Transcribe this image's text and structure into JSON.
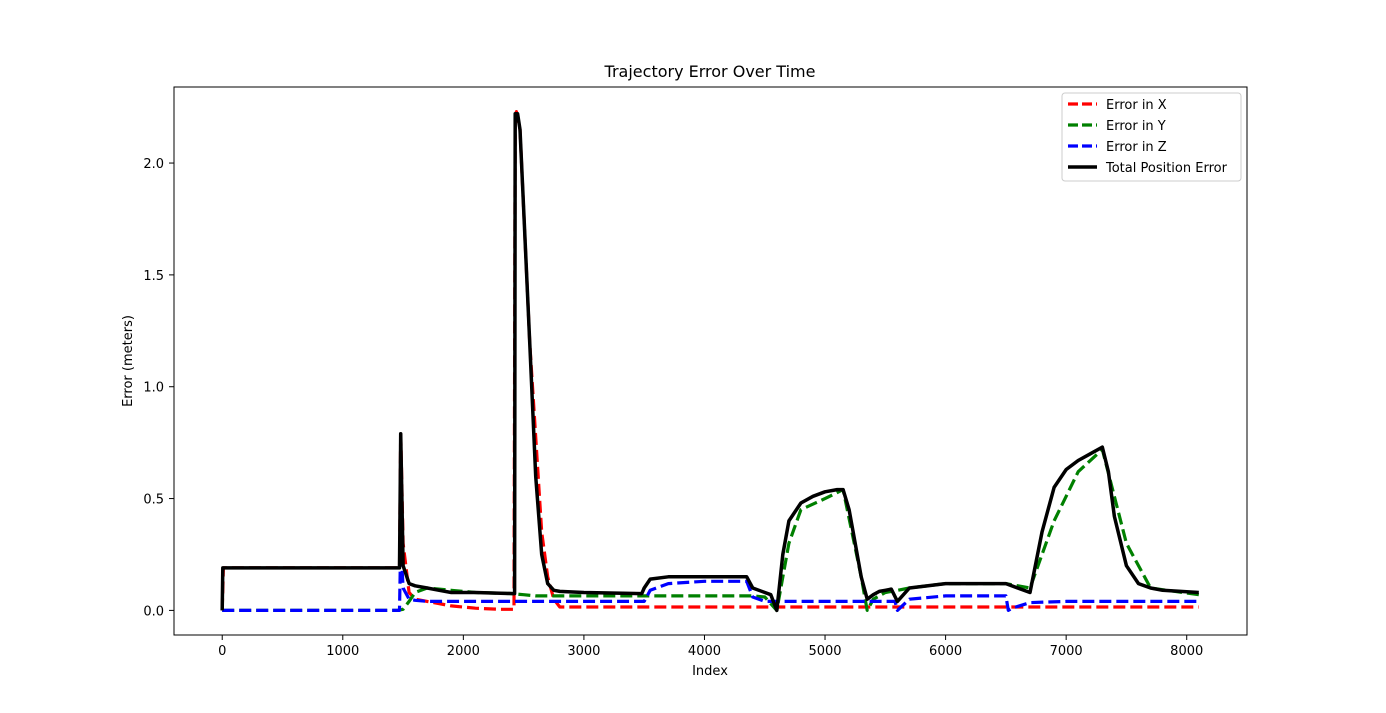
{
  "chart_data": {
    "type": "line",
    "title": "Trajectory Error Over Time",
    "xlabel": "Index",
    "ylabel": "Error (meters)",
    "xlim": [
      -400,
      8500
    ],
    "ylim": [
      -0.11,
      2.34
    ],
    "xticks": [
      0,
      1000,
      2000,
      3000,
      4000,
      5000,
      6000,
      7000,
      8000
    ],
    "xtick_labels": [
      "0",
      "1000",
      "2000",
      "3000",
      "4000",
      "5000",
      "6000",
      "7000",
      "8000"
    ],
    "yticks": [
      0.0,
      0.5,
      1.0,
      1.5,
      2.0
    ],
    "ytick_labels": [
      "0.0",
      "0.5",
      "1.0",
      "1.5",
      "2.0"
    ],
    "legend_position": "top-right",
    "series": [
      {
        "name": "Error in X",
        "color": "#ff0000",
        "style": "dashed",
        "x": [
          0,
          10,
          1470,
          1480,
          1500,
          1550,
          1600,
          1700,
          1900,
          2100,
          2300,
          2420,
          2430,
          2440,
          2470,
          2550,
          2650,
          2700,
          2750,
          2800,
          3000,
          4000,
          5000,
          6000,
          7000,
          8100
        ],
        "y": [
          0.0,
          0.19,
          0.19,
          0.8,
          0.3,
          0.08,
          0.05,
          0.04,
          0.02,
          0.01,
          0.005,
          0.005,
          2.2,
          2.23,
          2.15,
          1.2,
          0.35,
          0.15,
          0.05,
          0.015,
          0.015,
          0.015,
          0.015,
          0.015,
          0.015,
          0.015
        ]
      },
      {
        "name": "Error in Y",
        "color": "#008000",
        "style": "dashed",
        "x": [
          0,
          1450,
          1500,
          1550,
          1600,
          1700,
          1900,
          2100,
          2400,
          2500,
          2600,
          2700,
          2800,
          3000,
          3500,
          4000,
          4400,
          4500,
          4600,
          4700,
          4800,
          5000,
          5150,
          5300,
          5350,
          5400,
          5500,
          5600,
          5700,
          6000,
          6500,
          6700,
          6900,
          7100,
          7300,
          7500,
          7700,
          8100
        ],
        "y": [
          0.0,
          0.0,
          0.005,
          0.04,
          0.08,
          0.1,
          0.09,
          0.08,
          0.075,
          0.07,
          0.065,
          0.065,
          0.065,
          0.065,
          0.065,
          0.065,
          0.065,
          0.06,
          0.0,
          0.3,
          0.45,
          0.5,
          0.54,
          0.15,
          0.0,
          0.05,
          0.08,
          0.09,
          0.1,
          0.12,
          0.12,
          0.1,
          0.4,
          0.62,
          0.72,
          0.3,
          0.1,
          0.07
        ]
      },
      {
        "name": "Error in Z",
        "color": "#0000ff",
        "style": "dashed",
        "x": [
          0,
          1470,
          1480,
          1500,
          1550,
          1600,
          1700,
          2000,
          2500,
          3000,
          3480,
          3500,
          3550,
          3700,
          4000,
          4350,
          4400,
          4500,
          4600,
          5000,
          5500,
          5580,
          5600,
          5700,
          6000,
          6500,
          6520,
          6550,
          6700,
          7000,
          8100
        ],
        "y": [
          0.0,
          0.0,
          0.3,
          0.1,
          0.05,
          0.045,
          0.04,
          0.04,
          0.04,
          0.04,
          0.04,
          0.04,
          0.09,
          0.12,
          0.13,
          0.13,
          0.06,
          0.04,
          0.04,
          0.04,
          0.04,
          0.04,
          0.0,
          0.05,
          0.065,
          0.065,
          0.0,
          0.01,
          0.035,
          0.04,
          0.04
        ]
      },
      {
        "name": "Total Position Error",
        "color": "#000000",
        "style": "solid",
        "x": [
          0,
          5,
          10,
          1470,
          1480,
          1490,
          1500,
          1550,
          1600,
          1700,
          1800,
          1900,
          2100,
          2420,
          2425,
          2430,
          2450,
          2470,
          2500,
          2550,
          2600,
          2650,
          2700,
          2750,
          2800,
          3000,
          3480,
          3500,
          3550,
          3700,
          4000,
          4350,
          4400,
          4550,
          4600,
          4650,
          4700,
          4800,
          4900,
          5000,
          5100,
          5150,
          5200,
          5250,
          5300,
          5350,
          5400,
          5450,
          5500,
          5550,
          5600,
          5700,
          6000,
          6500,
          6700,
          6800,
          6900,
          7000,
          7100,
          7200,
          7300,
          7350,
          7400,
          7500,
          7600,
          7700,
          7800,
          8100
        ],
        "y": [
          0.0,
          0.19,
          0.19,
          0.19,
          0.79,
          0.5,
          0.2,
          0.12,
          0.11,
          0.1,
          0.09,
          0.08,
          0.08,
          0.075,
          0.075,
          2.22,
          2.22,
          2.15,
          1.8,
          1.2,
          0.6,
          0.25,
          0.12,
          0.09,
          0.085,
          0.08,
          0.075,
          0.1,
          0.14,
          0.15,
          0.15,
          0.15,
          0.1,
          0.07,
          0.0,
          0.25,
          0.4,
          0.48,
          0.51,
          0.53,
          0.54,
          0.54,
          0.45,
          0.3,
          0.15,
          0.05,
          0.07,
          0.085,
          0.09,
          0.095,
          0.04,
          0.1,
          0.12,
          0.12,
          0.08,
          0.35,
          0.55,
          0.63,
          0.67,
          0.7,
          0.73,
          0.62,
          0.42,
          0.2,
          0.12,
          0.1,
          0.09,
          0.08
        ]
      }
    ]
  }
}
